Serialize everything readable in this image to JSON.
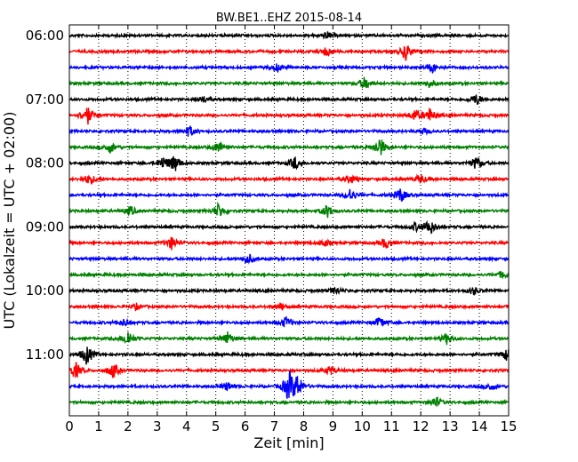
{
  "chart_data": {
    "type": "line",
    "title": "BW.BE1..EHZ 2015-08-14",
    "xlabel": "Zeit  [min]",
    "ylabel": "UTC (Lokalzeit = UTC + 02:00)",
    "xlim": [
      0,
      15
    ],
    "x_ticks": [
      "0",
      "1",
      "2",
      "3",
      "4",
      "5",
      "6",
      "7",
      "8",
      "9",
      "10",
      "11",
      "12",
      "13",
      "14",
      "15"
    ],
    "y_ticks": [
      "06:00",
      "07:00",
      "08:00",
      "09:00",
      "10:00",
      "11:00"
    ],
    "grid": "vertical-dotted",
    "trace_interval_min": 15,
    "colors": [
      "#000000",
      "#ff0000",
      "#0000ff",
      "#008000"
    ],
    "series": [
      {
        "start": "06:00",
        "events": [
          [
            8.8,
            0.18
          ]
        ]
      },
      {
        "start": "06:15",
        "events": [
          [
            8.8,
            0.25
          ],
          [
            11.5,
            0.45
          ]
        ]
      },
      {
        "start": "06:30",
        "events": [
          [
            7.1,
            0.2
          ],
          [
            12.4,
            0.25
          ]
        ]
      },
      {
        "start": "06:45",
        "events": [
          [
            10.1,
            0.35
          ],
          [
            12.3,
            0.2
          ]
        ]
      },
      {
        "start": "07:00",
        "events": [
          [
            4.6,
            0.15
          ],
          [
            13.9,
            0.3
          ]
        ]
      },
      {
        "start": "07:15",
        "events": [
          [
            0.6,
            0.55
          ],
          [
            11.8,
            0.3
          ],
          [
            12.3,
            0.35
          ]
        ]
      },
      {
        "start": "07:30",
        "events": [
          [
            4.1,
            0.3
          ],
          [
            12.1,
            0.15
          ]
        ]
      },
      {
        "start": "07:45",
        "events": [
          [
            1.4,
            0.3
          ],
          [
            5.1,
            0.3
          ],
          [
            10.6,
            0.55
          ]
        ]
      },
      {
        "start": "08:00",
        "events": [
          [
            3.2,
            0.3
          ],
          [
            3.6,
            0.45
          ],
          [
            7.7,
            0.35
          ],
          [
            13.9,
            0.35
          ]
        ]
      },
      {
        "start": "08:15",
        "events": [
          [
            0.7,
            0.3
          ],
          [
            9.6,
            0.25
          ],
          [
            12.0,
            0.25
          ]
        ]
      },
      {
        "start": "08:30",
        "events": [
          [
            9.6,
            0.35
          ],
          [
            11.3,
            0.4
          ]
        ]
      },
      {
        "start": "08:45",
        "events": [
          [
            2.1,
            0.25
          ],
          [
            5.1,
            0.4
          ],
          [
            8.8,
            0.35
          ]
        ]
      },
      {
        "start": "09:00",
        "events": [
          [
            11.8,
            0.2
          ],
          [
            12.3,
            0.45
          ]
        ]
      },
      {
        "start": "09:15",
        "events": [
          [
            3.5,
            0.35
          ],
          [
            8.7,
            0.2
          ],
          [
            10.8,
            0.3
          ]
        ]
      },
      {
        "start": "09:30",
        "events": [
          [
            6.1,
            0.3
          ]
        ]
      },
      {
        "start": "09:45",
        "events": [
          [
            14.8,
            0.2
          ]
        ]
      },
      {
        "start": "10:00",
        "events": [
          [
            9.1,
            0.2
          ],
          [
            13.8,
            0.2
          ]
        ]
      },
      {
        "start": "10:15",
        "events": [
          [
            2.3,
            0.15
          ],
          [
            7.2,
            0.2
          ]
        ]
      },
      {
        "start": "10:30",
        "events": [
          [
            1.9,
            0.2
          ],
          [
            7.4,
            0.3
          ],
          [
            10.6,
            0.3
          ]
        ]
      },
      {
        "start": "10:45",
        "events": [
          [
            2.0,
            0.45
          ],
          [
            5.4,
            0.35
          ],
          [
            12.9,
            0.3
          ]
        ]
      },
      {
        "start": "11:00",
        "events": [
          [
            0.6,
            0.55
          ],
          [
            15.0,
            0.45
          ]
        ]
      },
      {
        "start": "11:15",
        "events": [
          [
            0.2,
            0.45
          ],
          [
            1.5,
            0.4
          ],
          [
            8.9,
            0.25
          ]
        ]
      },
      {
        "start": "11:30",
        "events": [
          [
            5.4,
            0.25
          ],
          [
            7.5,
            0.8
          ],
          [
            7.8,
            0.55
          ],
          [
            14.4,
            0.2
          ]
        ]
      },
      {
        "start": "11:45",
        "events": [
          [
            12.5,
            0.3
          ]
        ]
      }
    ]
  }
}
